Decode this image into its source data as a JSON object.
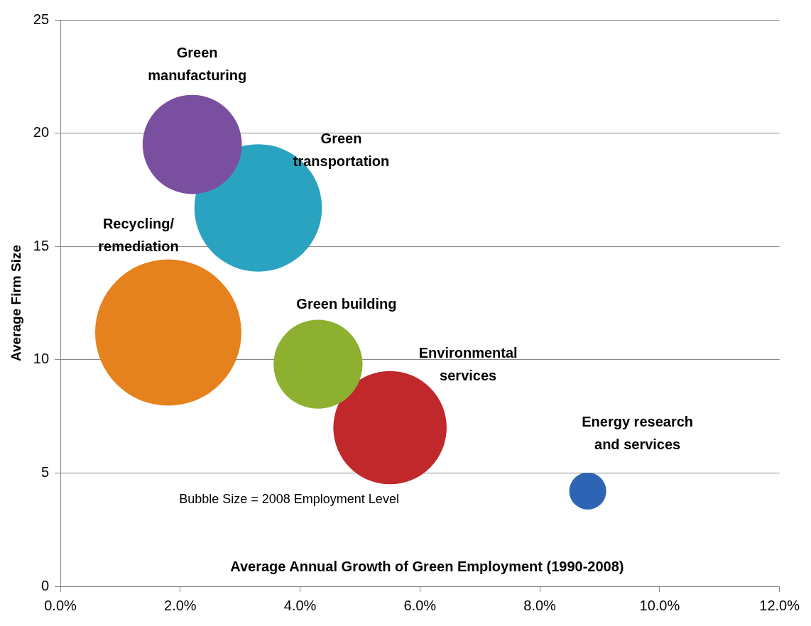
{
  "chart_data": {
    "type": "bubble",
    "xlabel": "Average Annual Growth of Green Employment (1990-2008)",
    "ylabel": "Average Firm Size",
    "xlim": [
      0,
      12
    ],
    "xticks": [
      {
        "value": 0,
        "label": "0.0%"
      },
      {
        "value": 2,
        "label": "2.0%"
      },
      {
        "value": 4,
        "label": "4.0%"
      },
      {
        "value": 6,
        "label": "6.0%"
      },
      {
        "value": 8,
        "label": "8.0%"
      },
      {
        "value": 10,
        "label": "10.0%"
      },
      {
        "value": 12,
        "label": "12.0%"
      }
    ],
    "ylim": [
      0,
      25
    ],
    "yticks": [
      0,
      5,
      10,
      15,
      20,
      25
    ],
    "grid": "y",
    "legend": false,
    "annotations": [
      "Bubble Size = 2008 Employment Level"
    ],
    "series": [
      {
        "name": "Green manufacturing",
        "color": "#7a4fa0",
        "x": [
          2.2
        ],
        "values": [
          19.5
        ],
        "sizes": [
          0.46
        ]
      },
      {
        "name": "Green transportation",
        "color": "#2aa3c0",
        "x": [
          3.3
        ],
        "values": [
          16.7
        ],
        "sizes": [
          0.76
        ]
      },
      {
        "name": "Recycling/remediation",
        "color": "#e6821e",
        "x": [
          1.8
        ],
        "values": [
          11.2
        ],
        "sizes": [
          1
        ]
      },
      {
        "name": "Green building",
        "color": "#8db030",
        "x": [
          4.3
        ],
        "values": [
          9.8
        ],
        "sizes": [
          0.37
        ]
      },
      {
        "name": "Environmental services",
        "color": "#c0282c",
        "x": [
          5.5
        ],
        "values": [
          7.0
        ],
        "sizes": [
          0.6
        ]
      },
      {
        "name": "Energy research and services",
        "color": "#2e64b4",
        "x": [
          8.8
        ],
        "values": [
          4.2
        ],
        "sizes": [
          0.064
        ]
      }
    ]
  }
}
